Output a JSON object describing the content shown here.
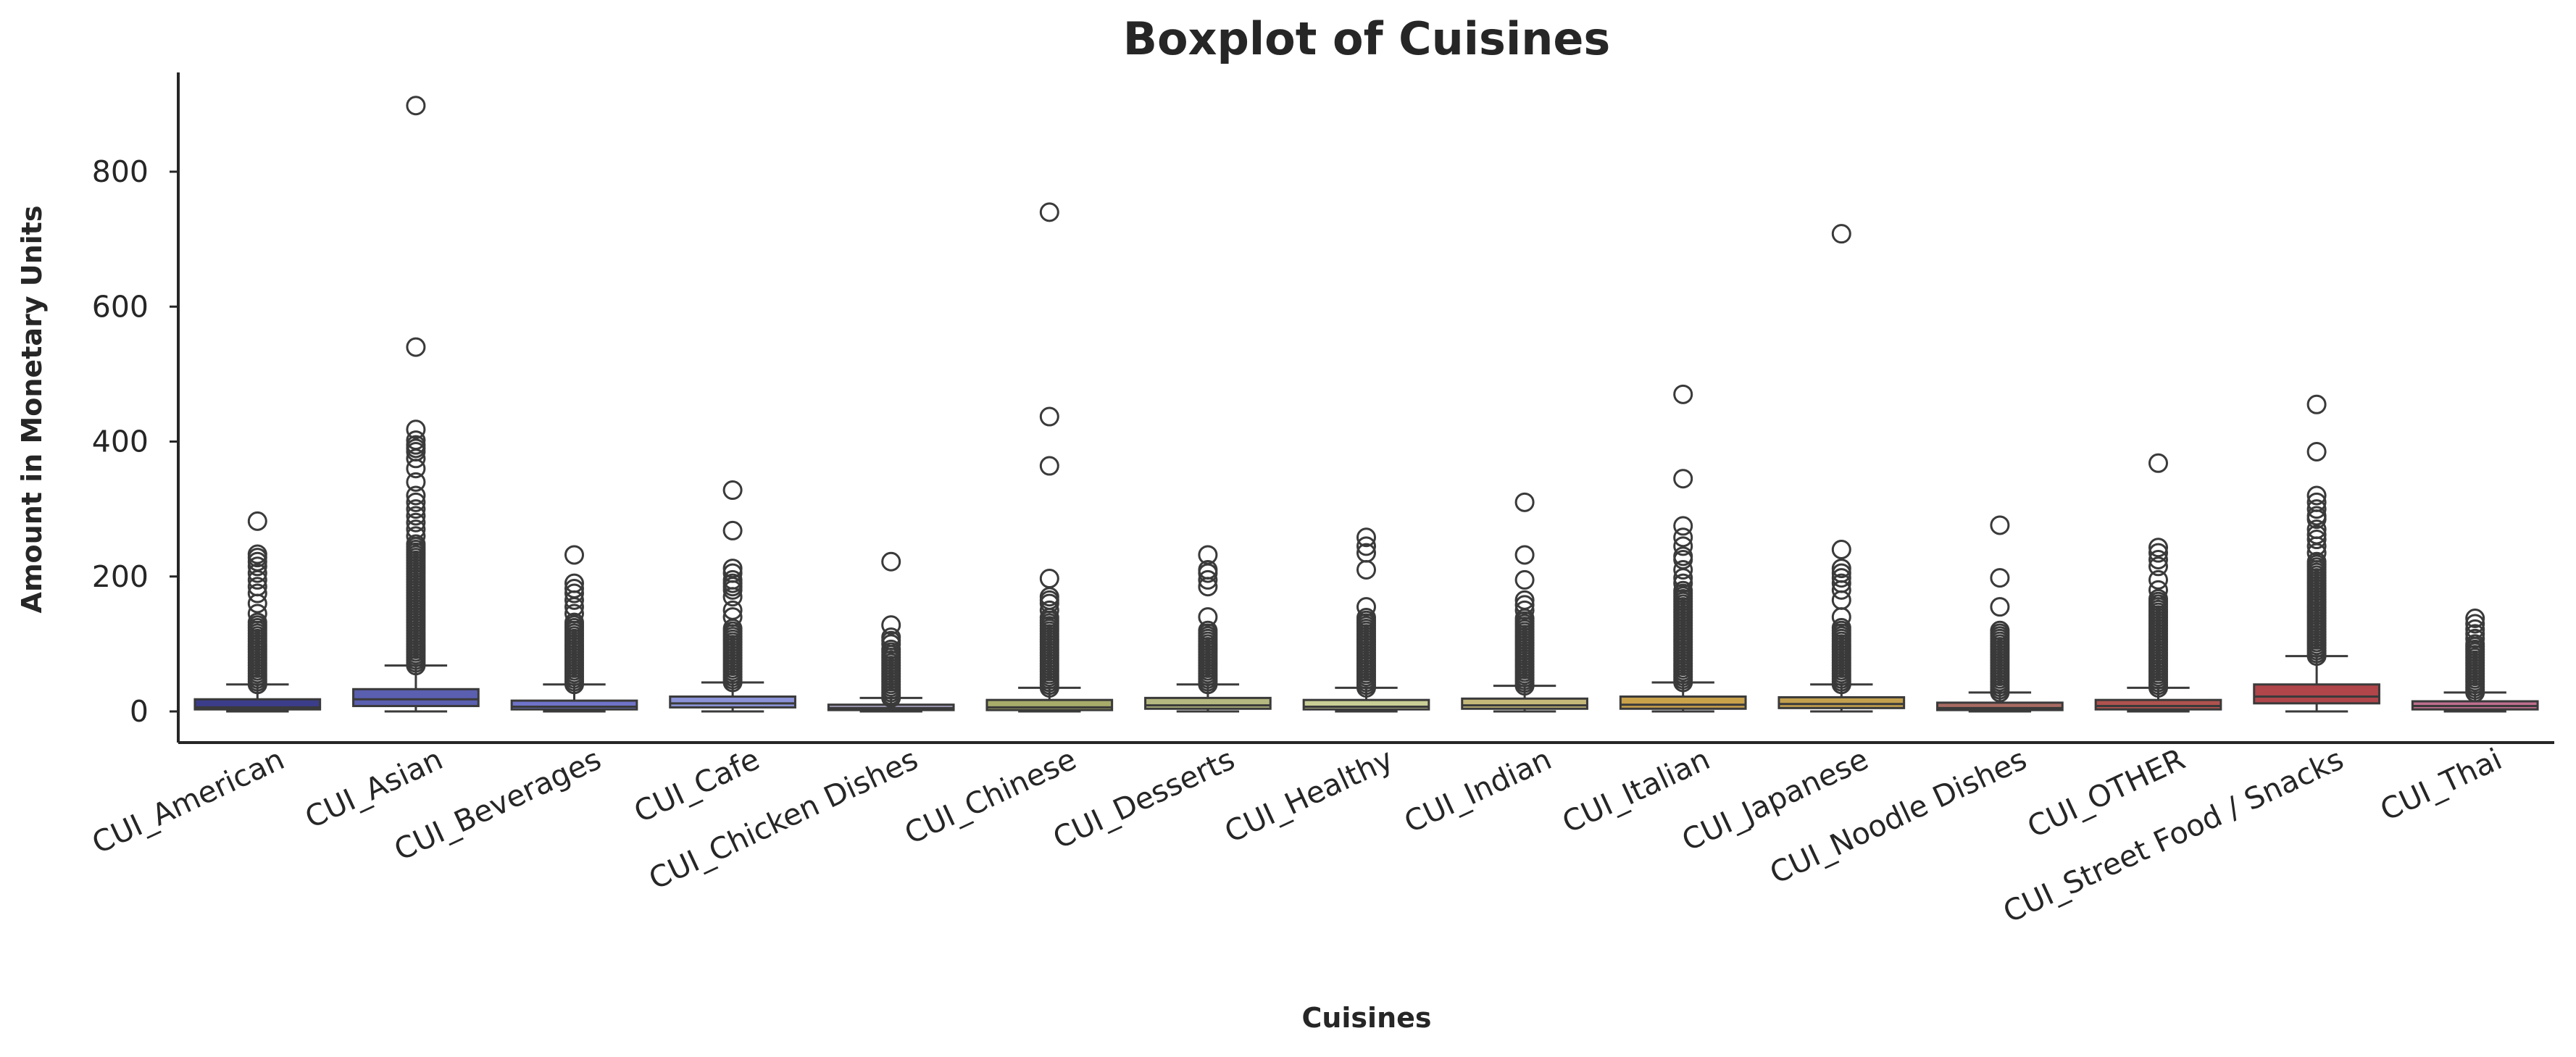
{
  "chart_data": {
    "type": "box",
    "title": "Boxplot of Cuisines",
    "xlabel": "Cuisines",
    "ylabel": "Amount in Monetary Units",
    "ylim": [
      -45,
      935
    ],
    "yticks": [
      0,
      200,
      400,
      600,
      800
    ],
    "grid": false,
    "legend": "none",
    "categories": [
      "CUI_American",
      "CUI_Asian",
      "CUI_Beverages",
      "CUI_Cafe",
      "CUI_Chicken Dishes",
      "CUI_Chinese",
      "CUI_Desserts",
      "CUI_Healthy",
      "CUI_Indian",
      "CUI_Italian",
      "CUI_Japanese",
      "CUI_Noodle Dishes",
      "CUI_OTHER",
      "CUI_Street Food / Snacks",
      "CUI_Thai"
    ],
    "box_colors": [
      "#3b3d8a",
      "#5b5fb0",
      "#6f73c8",
      "#8c93d8",
      "#a9a2c0",
      "#a8ac6a",
      "#b5b880",
      "#c9ce96",
      "#c6b878",
      "#c9a24a",
      "#c4a04e",
      "#a86b62",
      "#b0524f",
      "#b0454a",
      "#c06f8f"
    ],
    "boxes": [
      {
        "name": "CUI_American",
        "whislo": 0,
        "q1": 3,
        "med": 6,
        "q3": 18,
        "whishi": 40,
        "outliers_from": 40,
        "outliers_to": 135,
        "fliers": [
          145,
          160,
          175,
          185,
          195,
          205,
          215,
          222,
          228,
          233,
          282
        ]
      },
      {
        "name": "CUI_Asian",
        "whislo": 0,
        "q1": 8,
        "med": 18,
        "q3": 33,
        "whishi": 68,
        "outliers_from": 68,
        "outliers_to": 250,
        "fliers": [
          260,
          270,
          280,
          290,
          300,
          310,
          320,
          340,
          360,
          375,
          385,
          390,
          395,
          402,
          418,
          540,
          898
        ]
      },
      {
        "name": "CUI_Beverages",
        "whislo": 0,
        "q1": 3,
        "med": 7,
        "q3": 16,
        "whishi": 40,
        "outliers_from": 40,
        "outliers_to": 135,
        "fliers": [
          145,
          155,
          165,
          175,
          182,
          190,
          232
        ]
      },
      {
        "name": "CUI_Cafe",
        "whislo": 0,
        "q1": 6,
        "med": 12,
        "q3": 22,
        "whishi": 43,
        "outliers_from": 43,
        "outliers_to": 125,
        "fliers": [
          140,
          150,
          170,
          180,
          185,
          190,
          195,
          205,
          212,
          268,
          328
        ]
      },
      {
        "name": "CUI_Chicken Dishes",
        "whislo": 0,
        "q1": 2,
        "med": 5,
        "q3": 10,
        "whishi": 20,
        "outliers_from": 20,
        "outliers_to": 95,
        "fliers": [
          100,
          105,
          110,
          128,
          222
        ]
      },
      {
        "name": "CUI_Chinese",
        "whislo": 0,
        "q1": 2,
        "med": 6,
        "q3": 17,
        "whishi": 35,
        "outliers_from": 35,
        "outliers_to": 140,
        "fliers": [
          150,
          160,
          165,
          170,
          197,
          364,
          437,
          740
        ]
      },
      {
        "name": "CUI_Desserts",
        "whislo": 0,
        "q1": 4,
        "med": 9,
        "q3": 20,
        "whishi": 40,
        "outliers_from": 40,
        "outliers_to": 120,
        "fliers": [
          140,
          185,
          195,
          205,
          210,
          232
        ]
      },
      {
        "name": "CUI_Healthy",
        "whislo": 0,
        "q1": 3,
        "med": 7,
        "q3": 17,
        "whishi": 35,
        "outliers_from": 35,
        "outliers_to": 140,
        "fliers": [
          155,
          210,
          235,
          245,
          258
        ]
      },
      {
        "name": "CUI_Indian",
        "whislo": 0,
        "q1": 4,
        "med": 9,
        "q3": 19,
        "whishi": 38,
        "outliers_from": 38,
        "outliers_to": 140,
        "fliers": [
          150,
          158,
          165,
          195,
          232,
          310
        ]
      },
      {
        "name": "CUI_Italian",
        "whislo": 0,
        "q1": 4,
        "med": 10,
        "q3": 22,
        "whishi": 43,
        "outliers_from": 43,
        "outliers_to": 180,
        "fliers": [
          190,
          198,
          210,
          225,
          230,
          245,
          258,
          275,
          345,
          470
        ]
      },
      {
        "name": "CUI_Japanese",
        "whislo": 0,
        "q1": 5,
        "med": 11,
        "q3": 21,
        "whishi": 40,
        "outliers_from": 40,
        "outliers_to": 125,
        "fliers": [
          140,
          165,
          180,
          190,
          198,
          205,
          212,
          240,
          708
        ]
      },
      {
        "name": "CUI_Noodle Dishes",
        "whislo": 0,
        "q1": 2,
        "med": 5,
        "q3": 13,
        "whishi": 28,
        "outliers_from": 28,
        "outliers_to": 120,
        "fliers": [
          155,
          198,
          276
        ]
      },
      {
        "name": "CUI_OTHER",
        "whislo": 0,
        "q1": 3,
        "med": 8,
        "q3": 17,
        "whishi": 35,
        "outliers_from": 35,
        "outliers_to": 170,
        "fliers": [
          180,
          195,
          215,
          225,
          235,
          243,
          368
        ]
      },
      {
        "name": "CUI_Street Food / Snacks",
        "whislo": 0,
        "q1": 12,
        "med": 22,
        "q3": 40,
        "whishi": 82,
        "outliers_from": 82,
        "outliers_to": 225,
        "fliers": [
          235,
          245,
          255,
          262,
          270,
          285,
          290,
          300,
          310,
          320,
          385,
          455
        ]
      },
      {
        "name": "CUI_Thai",
        "whislo": 0,
        "q1": 3,
        "med": 8,
        "q3": 15,
        "whishi": 28,
        "outliers_from": 28,
        "outliers_to": 100,
        "fliers": [
          108,
          115,
          122,
          130,
          138
        ]
      }
    ]
  }
}
